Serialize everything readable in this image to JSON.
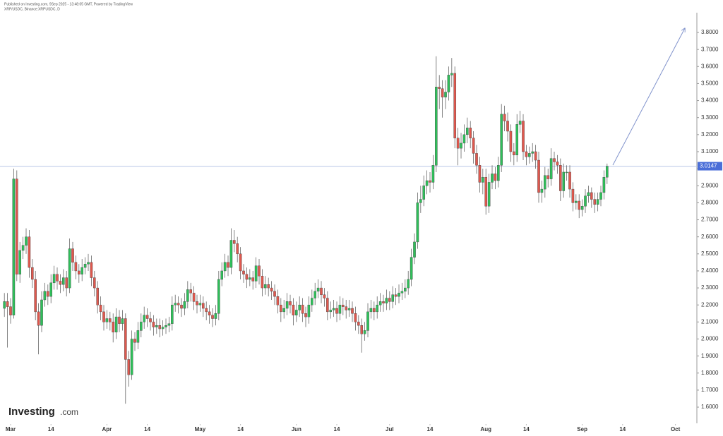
{
  "chart_data": {
    "type": "candlestick",
    "published": "Published on Investing.com, 9Sep 2025 - 13:48:05 GMT, Powered by TradingView",
    "subtitle": "XRP/USDC, Binance:XRPUSDC, D",
    "logo": "Investing",
    "logo_suffix": ".com",
    "up_color": "#2fbf5a",
    "down_color": "#e0584e",
    "last_price": 3.0147,
    "last_price_color": "#4a6ed8",
    "xlim": [
      -1.41,
      222.45
    ],
    "xticks": [
      {
        "value": 2,
        "label": "Mar"
      },
      {
        "value": 15,
        "label": "14"
      },
      {
        "value": 33,
        "label": "Apr"
      },
      {
        "value": 46,
        "label": "14"
      },
      {
        "value": 63,
        "label": "May"
      },
      {
        "value": 76,
        "label": "14"
      },
      {
        "value": 94,
        "label": "Jun"
      },
      {
        "value": 107,
        "label": "14"
      },
      {
        "value": 124,
        "label": "Jul"
      },
      {
        "value": 137,
        "label": "14"
      },
      {
        "value": 155,
        "label": "Aug"
      },
      {
        "value": 168,
        "label": "14"
      },
      {
        "value": 186,
        "label": "Sep"
      },
      {
        "value": 199,
        "label": "14"
      },
      {
        "value": 216,
        "label": "Oct"
      }
    ],
    "ylim": [
      1.505,
      3.916
    ],
    "yticks": [
      {
        "value": 1.6,
        "label": "1.6000"
      },
      {
        "value": 1.7,
        "label": "1.7000"
      },
      {
        "value": 1.8,
        "label": "1.8000"
      },
      {
        "value": 1.9,
        "label": "1.9000"
      },
      {
        "value": 2.0,
        "label": "2.0000"
      },
      {
        "value": 2.1,
        "label": "2.1000"
      },
      {
        "value": 2.2,
        "label": "2.2000"
      },
      {
        "value": 2.3,
        "label": "2.3000"
      },
      {
        "value": 2.4,
        "label": "2.4000"
      },
      {
        "value": 2.5,
        "label": "2.5000"
      },
      {
        "value": 2.6,
        "label": "2.6000"
      },
      {
        "value": 2.7,
        "label": "2.7000"
      },
      {
        "value": 2.8,
        "label": "2.8000"
      },
      {
        "value": 2.9,
        "label": "2.9000"
      },
      {
        "value": 3.0,
        "label": "3.0000"
      },
      {
        "value": 3.1,
        "label": "3.1000"
      },
      {
        "value": 3.2,
        "label": "3.2000"
      },
      {
        "value": 3.3,
        "label": "3.3000"
      },
      {
        "value": 3.4,
        "label": "3.4000"
      },
      {
        "value": 3.5,
        "label": "3.5000"
      },
      {
        "value": 3.6,
        "label": "3.6000"
      },
      {
        "value": 3.7,
        "label": "3.7000"
      },
      {
        "value": 3.8,
        "label": "3.8000"
      }
    ],
    "open": [
      2.18,
      2.22,
      2.19,
      2.14,
      2.94,
      2.38,
      2.52,
      2.55,
      2.6,
      2.42,
      2.35,
      2.16,
      2.08,
      2.23,
      2.28,
      2.25,
      2.33,
      2.38,
      2.34,
      2.32,
      2.36,
      2.3,
      2.53,
      2.45,
      2.4,
      2.38,
      2.42,
      2.44,
      2.45,
      2.36,
      2.3,
      2.2,
      2.16,
      2.1,
      2.12,
      2.1,
      2.04,
      2.13,
      2.09,
      2.12,
      1.88,
      1.79,
      2.0,
      1.98,
      2.05,
      2.1,
      2.14,
      2.12,
      2.1,
      2.07,
      2.08,
      2.06,
      2.07,
      2.08,
      2.09,
      2.2,
      2.21,
      2.2,
      2.18,
      2.22,
      2.29,
      2.27,
      2.22,
      2.2,
      2.21,
      2.18,
      2.16,
      2.14,
      2.12,
      2.15,
      2.35,
      2.4,
      2.45,
      2.42,
      2.58,
      2.56,
      2.5,
      2.4,
      2.38,
      2.35,
      2.36,
      2.34,
      2.43,
      2.37,
      2.3,
      2.32,
      2.3,
      2.28,
      2.25,
      2.2,
      2.16,
      2.18,
      2.22,
      2.2,
      2.14,
      2.17,
      2.2,
      2.15,
      2.13,
      2.2,
      2.24,
      2.28,
      2.3,
      2.26,
      2.24,
      2.16,
      2.17,
      2.18,
      2.15,
      2.2,
      2.19,
      2.17,
      2.18,
      2.15,
      2.1,
      2.08,
      2.03,
      2.05,
      2.16,
      2.18,
      2.16,
      2.2,
      2.22,
      2.21,
      2.24,
      2.22,
      2.26,
      2.25,
      2.27,
      2.28,
      2.3,
      2.35,
      2.48,
      2.57,
      2.8,
      2.82,
      2.9,
      2.93,
      2.92,
      3.02,
      3.48,
      3.47,
      3.42,
      3.45,
      3.55,
      3.56,
      3.18,
      3.12,
      3.15,
      3.2,
      3.24,
      3.18,
      3.09,
      3.02,
      2.92,
      2.95,
      2.78,
      2.92,
      2.97,
      2.93,
      3.02,
      3.32,
      3.28,
      3.22,
      3.1,
      3.08,
      3.26,
      3.28,
      3.1,
      3.07,
      3.09,
      3.1,
      3.05,
      2.86,
      2.88,
      2.96,
      2.94,
      3.06,
      3.04,
      3.02,
      2.87,
      2.98,
      2.98,
      2.88,
      2.8,
      2.81,
      2.76,
      2.78,
      2.84,
      2.86,
      2.82,
      2.79,
      2.82,
      2.86,
      2.95
    ],
    "high": [
      2.27,
      2.27,
      2.24,
      3.0,
      2.99,
      2.57,
      2.6,
      2.65,
      2.64,
      2.47,
      2.4,
      2.21,
      2.28,
      2.33,
      2.32,
      2.38,
      2.43,
      2.42,
      2.38,
      2.41,
      2.4,
      2.59,
      2.57,
      2.49,
      2.44,
      2.47,
      2.48,
      2.5,
      2.49,
      2.4,
      2.34,
      2.25,
      2.2,
      2.17,
      2.16,
      2.15,
      2.18,
      2.17,
      2.17,
      2.15,
      1.93,
      2.05,
      2.04,
      2.1,
      2.15,
      2.19,
      2.18,
      2.16,
      2.14,
      2.12,
      2.12,
      2.11,
      2.12,
      2.13,
      2.25,
      2.26,
      2.25,
      2.24,
      2.27,
      2.34,
      2.33,
      2.31,
      2.26,
      2.26,
      2.25,
      2.22,
      2.2,
      2.18,
      2.2,
      2.4,
      2.45,
      2.5,
      2.49,
      2.65,
      2.64,
      2.6,
      2.54,
      2.44,
      2.42,
      2.41,
      2.4,
      2.48,
      2.47,
      2.41,
      2.37,
      2.36,
      2.34,
      2.32,
      2.29,
      2.24,
      2.23,
      2.27,
      2.26,
      2.24,
      2.22,
      2.25,
      2.24,
      2.19,
      2.25,
      2.29,
      2.33,
      2.35,
      2.34,
      2.3,
      2.28,
      2.22,
      2.23,
      2.22,
      2.25,
      2.24,
      2.23,
      2.23,
      2.22,
      2.19,
      2.14,
      2.12,
      2.1,
      2.21,
      2.23,
      2.22,
      2.25,
      2.27,
      2.26,
      2.29,
      2.28,
      2.31,
      2.3,
      2.32,
      2.33,
      2.35,
      2.4,
      2.53,
      2.62,
      2.86,
      2.9,
      2.96,
      2.99,
      2.98,
      3.08,
      3.66,
      3.55,
      3.52,
      3.52,
      3.6,
      3.65,
      3.6,
      3.24,
      3.21,
      3.26,
      3.3,
      3.28,
      3.22,
      3.14,
      3.07,
      3.0,
      3.0,
      2.97,
      3.02,
      3.01,
      3.07,
      3.38,
      3.37,
      3.33,
      3.26,
      3.15,
      3.32,
      3.34,
      3.32,
      3.14,
      3.13,
      3.15,
      3.14,
      3.1,
      2.93,
      3.01,
      3.0,
      3.12,
      3.1,
      3.08,
      3.06,
      3.03,
      3.02,
      3.02,
      2.92,
      2.85,
      2.85,
      2.82,
      2.88,
      2.9,
      2.89,
      2.86,
      2.86,
      2.9,
      2.99,
      3.03
    ],
    "low": [
      2.13,
      1.95,
      2.09,
      2.12,
      2.34,
      2.33,
      2.47,
      2.5,
      2.36,
      2.3,
      2.11,
      1.91,
      2.04,
      2.19,
      2.2,
      2.21,
      2.29,
      2.29,
      2.27,
      2.28,
      2.25,
      2.27,
      2.4,
      2.35,
      2.33,
      2.34,
      2.38,
      2.4,
      2.31,
      2.25,
      2.15,
      2.11,
      2.05,
      2.06,
      2.05,
      1.98,
      2.0,
      2.04,
      2.05,
      1.62,
      1.72,
      1.76,
      1.93,
      1.94,
      2.01,
      2.06,
      2.07,
      2.05,
      2.02,
      2.03,
      2.01,
      2.02,
      2.03,
      2.04,
      2.05,
      2.16,
      2.15,
      2.13,
      2.14,
      2.18,
      2.22,
      2.17,
      2.15,
      2.16,
      2.13,
      2.11,
      2.09,
      2.07,
      2.08,
      2.11,
      2.31,
      2.36,
      2.37,
      2.38,
      2.51,
      2.45,
      2.35,
      2.33,
      2.3,
      2.31,
      2.29,
      2.3,
      2.32,
      2.25,
      2.26,
      2.25,
      2.23,
      2.2,
      2.15,
      2.1,
      2.12,
      2.14,
      2.15,
      2.08,
      2.1,
      2.13,
      2.1,
      2.07,
      2.09,
      2.16,
      2.2,
      2.24,
      2.21,
      2.19,
      2.11,
      2.12,
      2.13,
      2.1,
      2.11,
      2.14,
      2.12,
      2.13,
      2.1,
      2.05,
      2.03,
      1.92,
      1.99,
      2.01,
      2.12,
      2.11,
      2.12,
      2.16,
      2.16,
      2.17,
      2.17,
      2.18,
      2.2,
      2.21,
      2.23,
      2.24,
      2.26,
      2.31,
      2.44,
      2.53,
      2.74,
      2.78,
      2.85,
      2.86,
      2.88,
      2.98,
      3.35,
      3.3,
      3.35,
      3.4,
      3.48,
      3.12,
      3.02,
      3.06,
      3.1,
      3.15,
      3.12,
      3.03,
      2.97,
      2.86,
      2.85,
      2.73,
      2.74,
      2.88,
      2.88,
      2.89,
      2.98,
      3.22,
      3.16,
      3.04,
      3.02,
      3.04,
      3.21,
      3.05,
      3.02,
      3.03,
      3.04,
      3.0,
      2.8,
      2.8,
      2.83,
      2.89,
      2.9,
      2.99,
      2.97,
      2.81,
      2.83,
      2.93,
      2.83,
      2.75,
      2.76,
      2.71,
      2.72,
      2.74,
      2.8,
      2.77,
      2.74,
      2.75,
      2.78,
      2.82,
      2.91
    ],
    "close": [
      2.22,
      2.19,
      2.14,
      2.94,
      2.38,
      2.52,
      2.55,
      2.6,
      2.42,
      2.35,
      2.16,
      2.08,
      2.23,
      2.28,
      2.25,
      2.33,
      2.38,
      2.34,
      2.32,
      2.36,
      2.3,
      2.53,
      2.45,
      2.4,
      2.38,
      2.42,
      2.44,
      2.45,
      2.36,
      2.3,
      2.2,
      2.16,
      2.1,
      2.12,
      2.1,
      2.04,
      2.13,
      2.09,
      2.12,
      1.88,
      1.79,
      2.0,
      1.98,
      2.05,
      2.1,
      2.14,
      2.12,
      2.1,
      2.07,
      2.08,
      2.06,
      2.07,
      2.08,
      2.09,
      2.2,
      2.21,
      2.2,
      2.18,
      2.22,
      2.29,
      2.27,
      2.22,
      2.2,
      2.21,
      2.18,
      2.16,
      2.14,
      2.12,
      2.15,
      2.35,
      2.4,
      2.45,
      2.42,
      2.58,
      2.56,
      2.5,
      2.4,
      2.38,
      2.35,
      2.36,
      2.34,
      2.43,
      2.37,
      2.3,
      2.32,
      2.3,
      2.28,
      2.25,
      2.2,
      2.16,
      2.18,
      2.22,
      2.2,
      2.14,
      2.17,
      2.2,
      2.15,
      2.13,
      2.2,
      2.24,
      2.28,
      2.3,
      2.26,
      2.24,
      2.16,
      2.17,
      2.18,
      2.15,
      2.2,
      2.19,
      2.17,
      2.18,
      2.15,
      2.1,
      2.08,
      2.03,
      2.05,
      2.16,
      2.18,
      2.16,
      2.2,
      2.22,
      2.21,
      2.24,
      2.22,
      2.26,
      2.25,
      2.27,
      2.28,
      2.3,
      2.35,
      2.48,
      2.57,
      2.8,
      2.82,
      2.9,
      2.93,
      2.92,
      3.02,
      3.48,
      3.47,
      3.42,
      3.45,
      3.55,
      3.56,
      3.18,
      3.12,
      3.15,
      3.2,
      3.24,
      3.18,
      3.09,
      3.02,
      2.92,
      2.95,
      2.78,
      2.92,
      2.97,
      2.93,
      3.02,
      3.32,
      3.28,
      3.22,
      3.1,
      3.08,
      3.26,
      3.28,
      3.1,
      3.07,
      3.09,
      3.1,
      3.05,
      2.86,
      2.88,
      2.96,
      2.94,
      3.06,
      3.04,
      3.02,
      2.87,
      2.98,
      2.98,
      2.88,
      2.8,
      2.81,
      2.76,
      2.78,
      2.84,
      2.86,
      2.82,
      2.79,
      2.82,
      2.86,
      2.95,
      3.0147
    ]
  }
}
